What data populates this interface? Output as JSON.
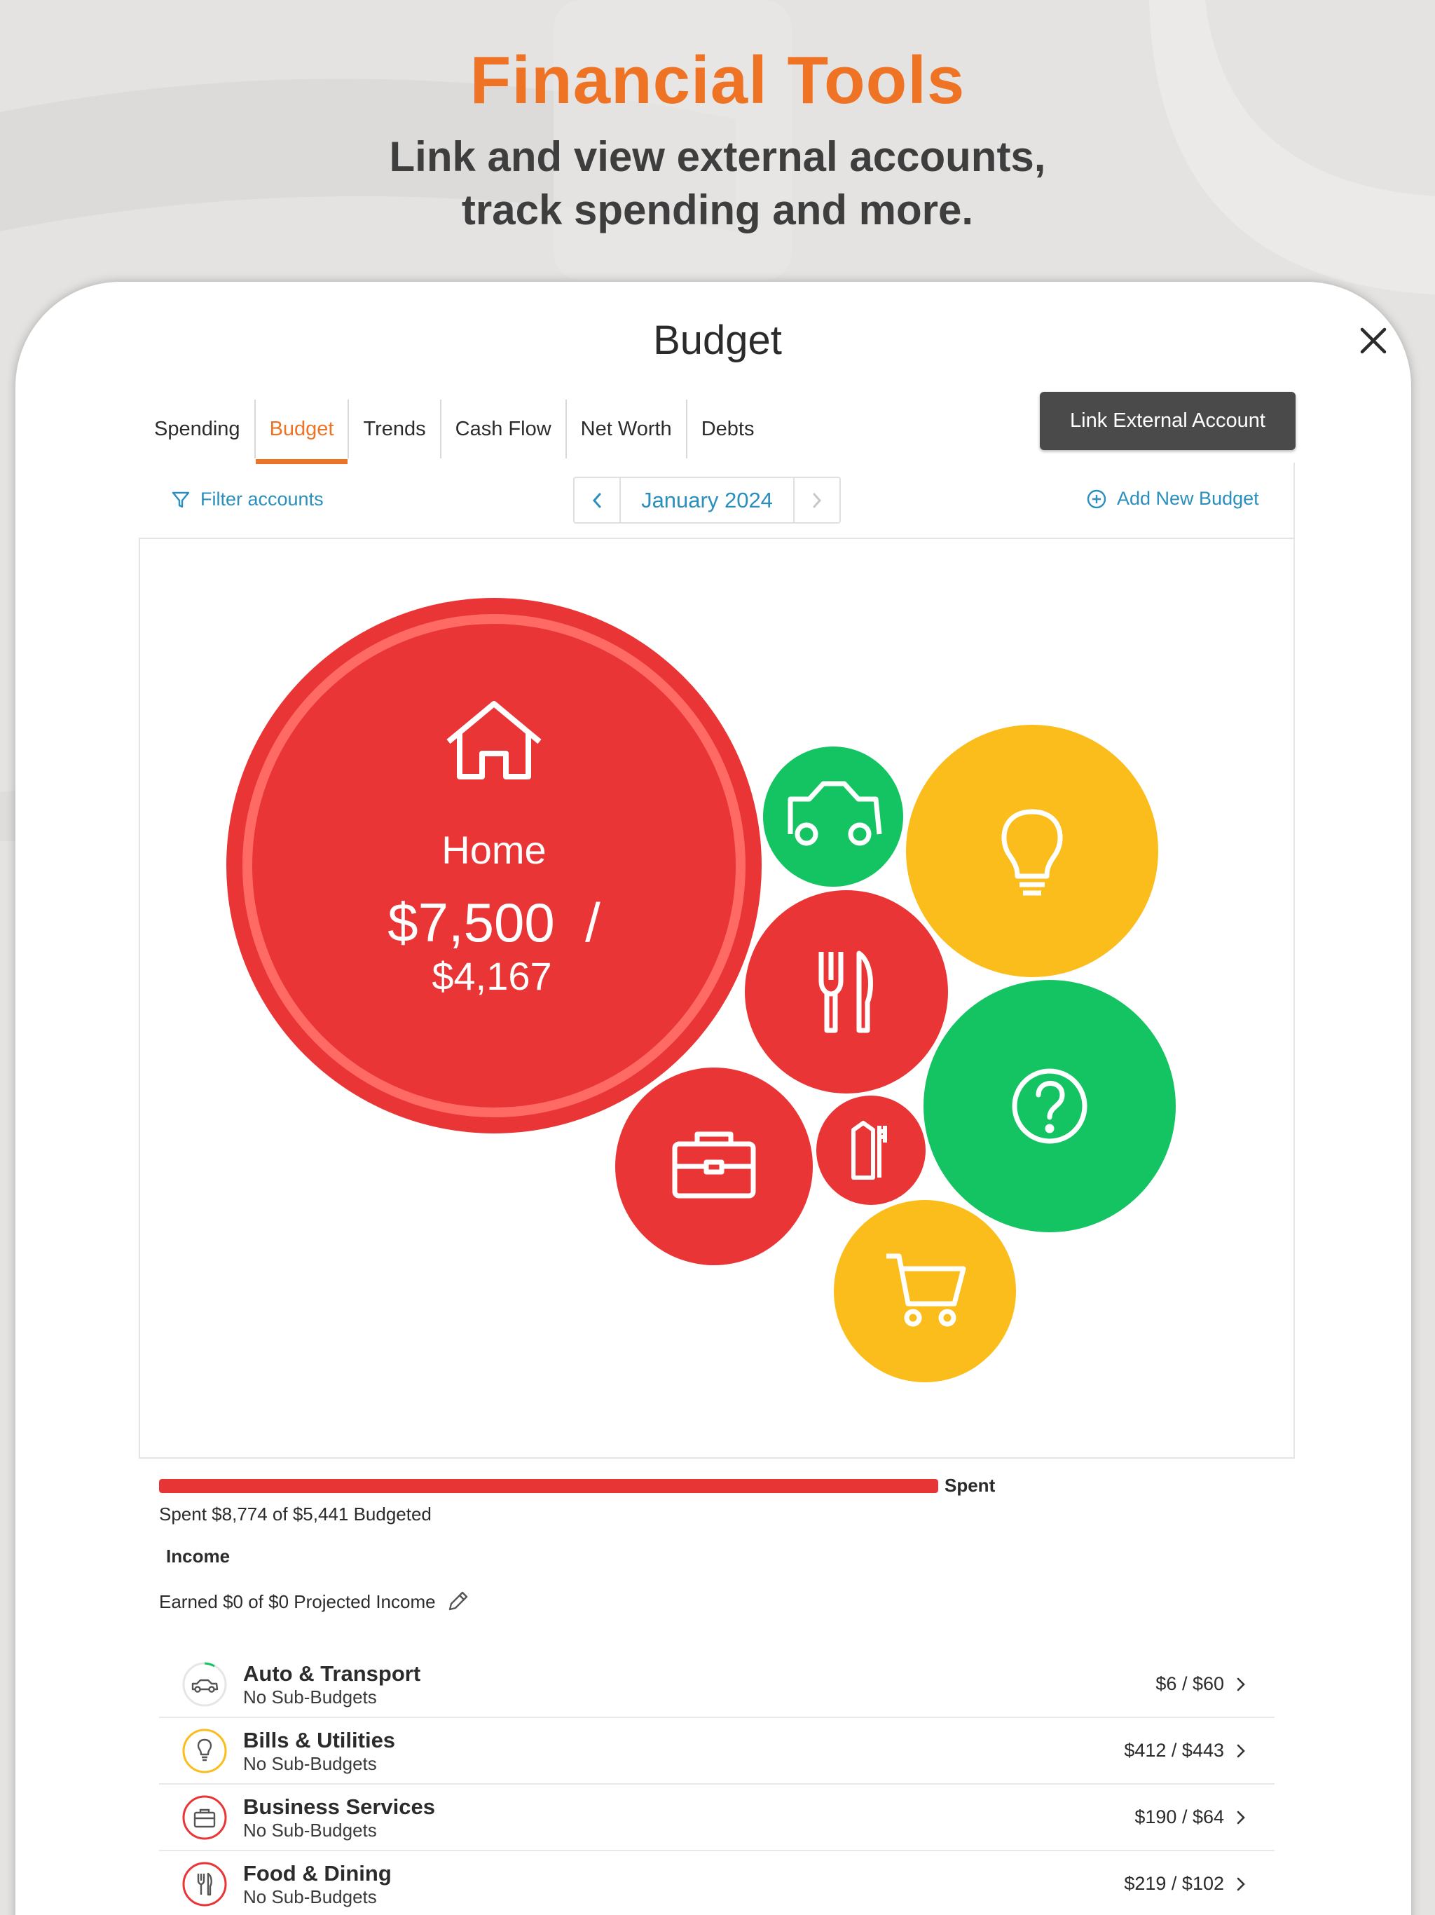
{
  "promo": {
    "headline": "Financial Tools",
    "subline_1": "Link and view external accounts,",
    "subline_2": "track spending and more."
  },
  "screen": {
    "title": "Budget",
    "tabs": [
      "Spending",
      "Budget",
      "Trends",
      "Cash Flow",
      "Net Worth",
      "Debts"
    ],
    "active_tab": "Budget",
    "link_button": "Link External Account",
    "filter_label": "Filter accounts",
    "month": "January 2024",
    "add_budget": "Add New Budget"
  },
  "bubbles": {
    "home": {
      "label": "Home",
      "amount": "$7,500  /",
      "budget": "$4,167",
      "color": "#e93535"
    },
    "auto": {
      "color": "#14c463",
      "icon": "car-icon"
    },
    "bills": {
      "color": "#fbbd1c",
      "icon": "lightbulb-icon"
    },
    "food": {
      "color": "#e93535",
      "icon": "utensils-icon"
    },
    "other": {
      "color": "#14c463",
      "icon": "question-icon"
    },
    "business": {
      "color": "#e93535",
      "icon": "briefcase-icon"
    },
    "personal": {
      "color": "#e93535",
      "icon": "toothbrush-icon"
    },
    "shopping": {
      "color": "#fbbd1c",
      "icon": "cart-icon"
    }
  },
  "summary": {
    "spent_fraction": 1.0,
    "spent_label": "Spent",
    "spent_text": "Spent $8,774 of $5,441 Budgeted",
    "income_heading": "Income",
    "earned_text": "Earned $0 of $0 Projected Income"
  },
  "categories": [
    {
      "name": "Auto & Transport",
      "sub": "No Sub-Budgets",
      "amount": "$6 / $60",
      "ring": "#14c463",
      "icon": "car-icon"
    },
    {
      "name": "Bills & Utilities",
      "sub": "No Sub-Budgets",
      "amount": "$412 / $443",
      "ring": "#fbbd1c",
      "icon": "lightbulb-icon"
    },
    {
      "name": "Business Services",
      "sub": "No Sub-Budgets",
      "amount": "$190 / $64",
      "ring": "#e93535",
      "icon": "briefcase-icon"
    },
    {
      "name": "Food & Dining",
      "sub": "No Sub-Budgets",
      "amount": "$219 / $102",
      "ring": "#e93535",
      "icon": "utensils-icon"
    }
  ]
}
